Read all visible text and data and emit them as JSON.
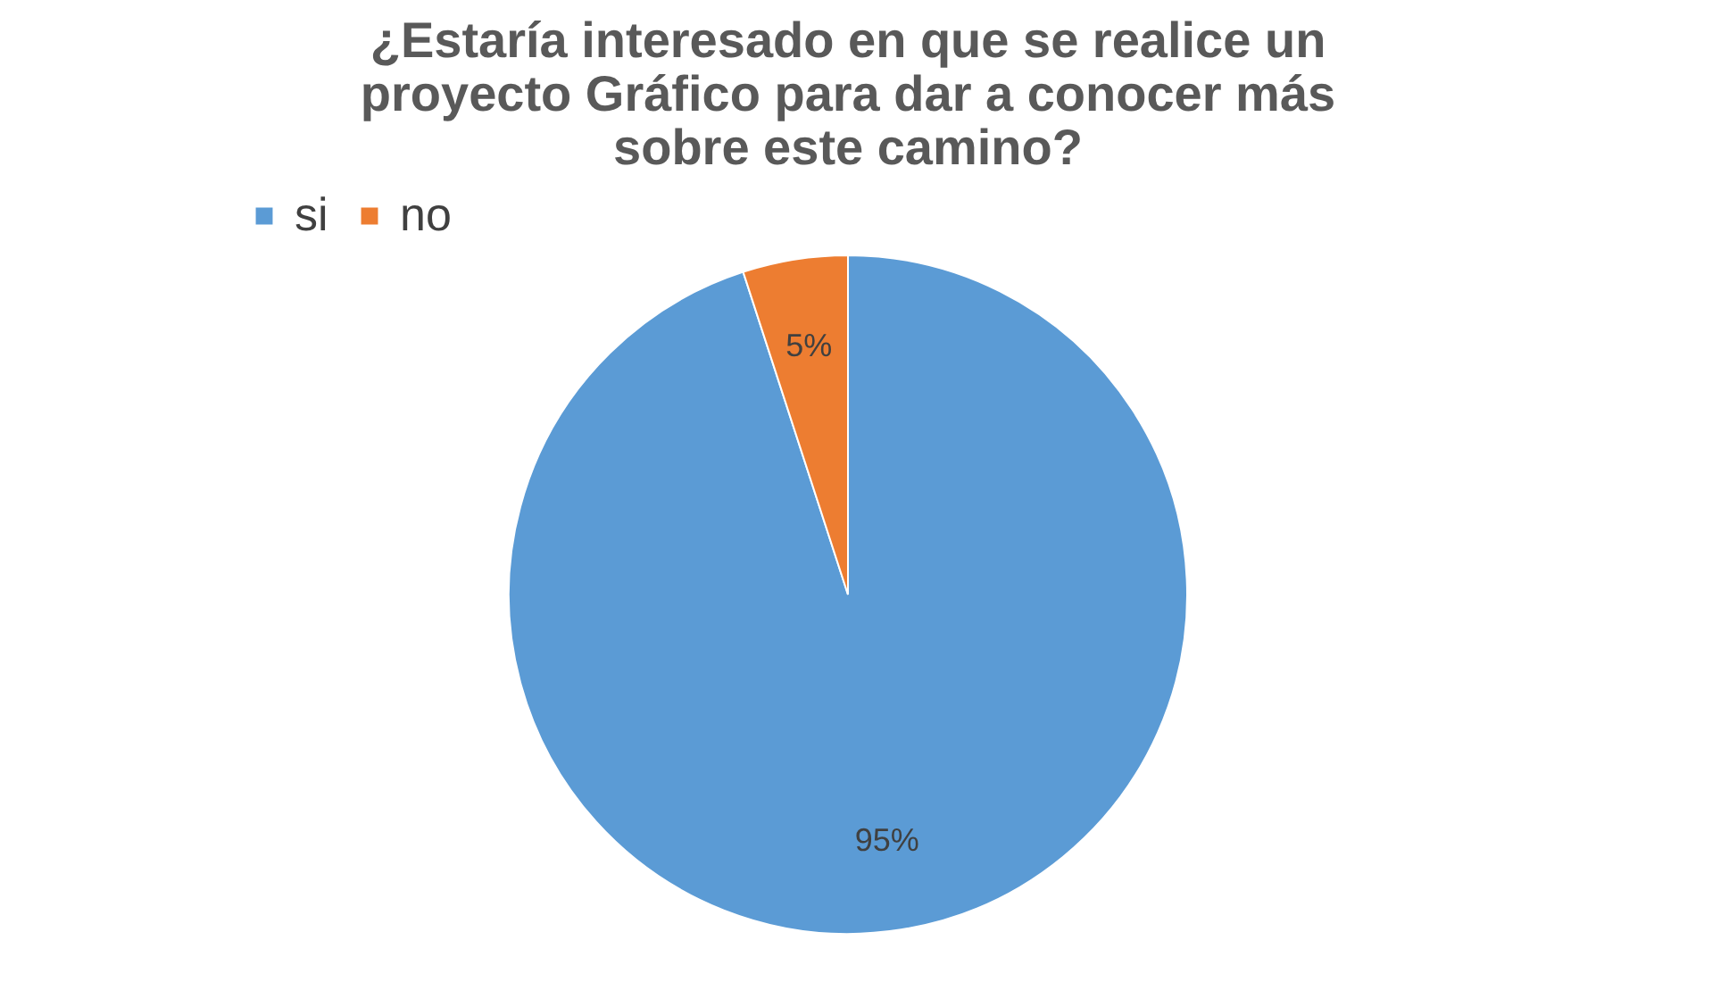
{
  "chart_data": {
    "type": "pie",
    "title": "¿Estaría interesado en que se realice un proyecto Gráfico para dar a conocer más sobre este camino?",
    "categories": [
      "si",
      "no"
    ],
    "values": [
      95,
      5
    ],
    "colors": [
      "#5b9bd5",
      "#ed7d31"
    ],
    "value_labels": [
      "95%",
      "5%"
    ],
    "legend": "top left"
  }
}
